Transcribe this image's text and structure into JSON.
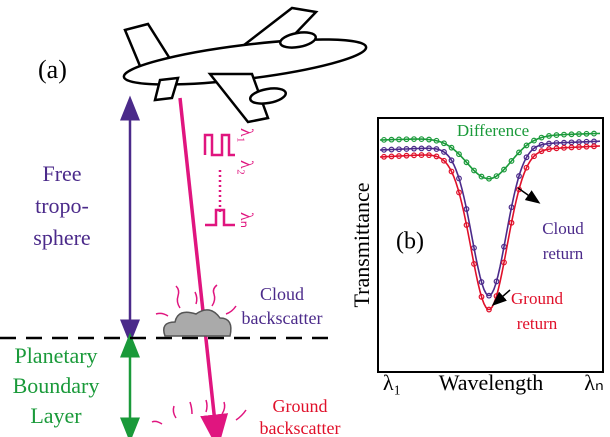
{
  "panel_a": {
    "label": "(a)",
    "free_troposphere": [
      "Free",
      "tropo-",
      "sphere"
    ],
    "boundary_layer": [
      "Planetary",
      "Boundary",
      "Layer"
    ],
    "cloud_backscatter": [
      "Cloud",
      "backscatter"
    ],
    "ground_backscatter": [
      "Ground",
      "backscatter"
    ],
    "wavelengths": [
      "λ₁",
      "λ₂",
      "λₙ"
    ]
  },
  "panel_b": {
    "label": "(b)",
    "difference": "Difference",
    "cloud_return": [
      "Cloud",
      "return"
    ],
    "ground_return": [
      "Ground",
      "return"
    ],
    "y_label": "Transmittance",
    "x_label": "Wavelength",
    "x_start": "λ₁",
    "x_end": "λₙ"
  }
}
